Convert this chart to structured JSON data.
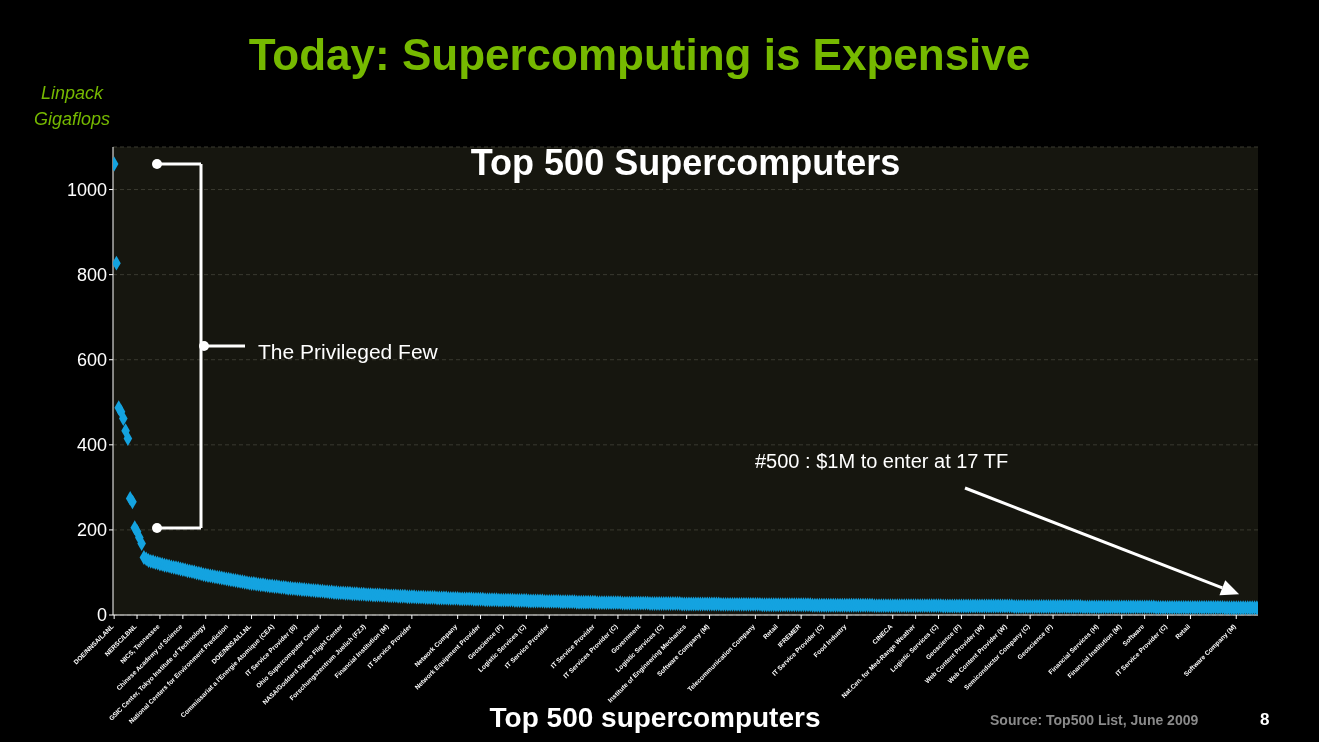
{
  "chart_data": {
    "type": "scatter",
    "title": "Today: Supercomputing is Expensive",
    "subtitle": "Top 500 Supercomputers",
    "xlabel": "Top 500 supercomputers",
    "ylabel": "Linpack Gigaflops",
    "annotations": [
      "The Privileged Few",
      "#500 : $1M to enter at 17 TF",
      "Source: Top500 List, June 2009",
      "8"
    ],
    "categories": [
      "DOE/NNSA/LANL",
      null,
      null,
      null,
      null,
      null,
      null,
      null,
      null,
      null,
      "NERSC/LBNL",
      null,
      null,
      null,
      null,
      null,
      null,
      null,
      null,
      null,
      "NICS, Tennessee",
      null,
      null,
      null,
      null,
      null,
      null,
      null,
      null,
      null,
      "Chinese Academy of Science",
      null,
      null,
      null,
      null,
      null,
      null,
      null,
      null,
      null,
      "GSIC Center, Tokyo Institute of Technology",
      null,
      null,
      null,
      null,
      null,
      null,
      null,
      null,
      null,
      "National Centers for Environment Prediction",
      null,
      null,
      null,
      null,
      null,
      null,
      null,
      null,
      null,
      "DOE/NNSA/LLNL",
      null,
      null,
      null,
      null,
      null,
      null,
      null,
      null,
      null,
      "Commissariat a l'Energie Atomique (CEA)",
      null,
      null,
      null,
      null,
      null,
      null,
      null,
      null,
      null,
      "IT Service Provider (B)",
      null,
      null,
      null,
      null,
      null,
      null,
      null,
      null,
      null,
      "Ohio Supercomputer Center",
      null,
      null,
      null,
      null,
      null,
      null,
      null,
      null,
      null,
      "NASA/Goddard Space Flight Center",
      null,
      null,
      null,
      null,
      null,
      null,
      null,
      null,
      null,
      "Forschungszentrum Juelich (FZJ)",
      null,
      null,
      null,
      null,
      null,
      null,
      null,
      null,
      null,
      "Financial Institution (M)",
      null,
      null,
      null,
      null,
      null,
      null,
      null,
      null,
      null,
      "IT Service Provider",
      null,
      null,
      null,
      null,
      null,
      null,
      null,
      null,
      null,
      null,
      null,
      null,
      null,
      null,
      null,
      null,
      null,
      null,
      null,
      "Network Company",
      null,
      null,
      null,
      null,
      null,
      null,
      null,
      null,
      null,
      "Network Equipment Provider",
      null,
      null,
      null,
      null,
      null,
      null,
      null,
      null,
      null,
      "Geoscience (F)",
      null,
      null,
      null,
      null,
      null,
      null,
      null,
      null,
      null,
      "Logistic Services (C)",
      null,
      null,
      null,
      null,
      null,
      null,
      null,
      null,
      null,
      "IT Service Provider",
      null,
      null,
      null,
      null,
      null,
      null,
      null,
      null,
      null,
      null,
      null,
      null,
      null,
      null,
      null,
      null,
      null,
      null,
      null,
      "IT Service Provider",
      null,
      null,
      null,
      null,
      null,
      null,
      null,
      null,
      null,
      "IT Services Provider (C)",
      null,
      null,
      null,
      null,
      null,
      null,
      null,
      null,
      null,
      "Government",
      null,
      null,
      null,
      null,
      null,
      null,
      null,
      null,
      null,
      "Logistic Services (C)",
      null,
      null,
      null,
      null,
      null,
      null,
      null,
      null,
      null,
      "Institute of Engineering Mechanics",
      null,
      null,
      null,
      null,
      null,
      null,
      null,
      null,
      null,
      "Software Company (M)",
      null,
      null,
      null,
      null,
      null,
      null,
      null,
      null,
      null,
      null,
      null,
      null,
      null,
      null,
      null,
      null,
      null,
      null,
      null,
      "Telecommunication Company",
      null,
      null,
      null,
      null,
      null,
      null,
      null,
      null,
      null,
      "Retail",
      null,
      null,
      null,
      null,
      null,
      null,
      null,
      null,
      null,
      "IFREMER",
      null,
      null,
      null,
      null,
      null,
      null,
      null,
      null,
      null,
      "IT Service Provider (C)",
      null,
      null,
      null,
      null,
      null,
      null,
      null,
      null,
      null,
      "Food Industry",
      null,
      null,
      null,
      null,
      null,
      null,
      null,
      null,
      null,
      null,
      null,
      null,
      null,
      null,
      null,
      null,
      null,
      null,
      null,
      "CINECA",
      null,
      null,
      null,
      null,
      null,
      null,
      null,
      null,
      null,
      "Nat.Cen. for Med-Range Weather",
      null,
      null,
      null,
      null,
      null,
      null,
      null,
      null,
      null,
      "Logistic Services (C)",
      null,
      null,
      null,
      null,
      null,
      null,
      null,
      null,
      null,
      "Geoscience (F)",
      null,
      null,
      null,
      null,
      null,
      null,
      null,
      null,
      null,
      "Web Content Provider (W)",
      null,
      null,
      null,
      null,
      null,
      null,
      null,
      null,
      null,
      "Web Content Provider (W)",
      null,
      null,
      null,
      null,
      null,
      null,
      null,
      null,
      null,
      "Semiconductor Company (C)",
      null,
      null,
      null,
      null,
      null,
      null,
      null,
      null,
      null,
      "Geoscience (F)",
      null,
      null,
      null,
      null,
      null,
      null,
      null,
      null,
      null,
      null,
      null,
      null,
      null,
      null,
      null,
      null,
      null,
      null,
      null,
      "Financial Services (H)",
      null,
      null,
      null,
      null,
      null,
      null,
      null,
      null,
      null,
      "Financial Institution (M)",
      null,
      null,
      null,
      null,
      null,
      null,
      null,
      null,
      null,
      "Software",
      null,
      null,
      null,
      null,
      null,
      null,
      null,
      null,
      null,
      "IT Service Provider (C)",
      null,
      null,
      null,
      null,
      null,
      null,
      null,
      null,
      null,
      "Retail",
      null,
      null,
      null,
      null,
      null,
      null,
      null,
      null,
      null,
      null,
      null,
      null,
      null,
      null,
      null,
      null,
      null,
      null,
      null,
      "Software Company (M)",
      null,
      null,
      null,
      null,
      null,
      null,
      null,
      null,
      null
    ],
    "values": [
      1060,
      827,
      487,
      478,
      462,
      433,
      415,
      274,
      266,
      205,
      196,
      182,
      168,
      135,
      132,
      128,
      126,
      125,
      123,
      122,
      120,
      119,
      117,
      116,
      115,
      113,
      112,
      111,
      110,
      108,
      107,
      106,
      104,
      103,
      102,
      101,
      99,
      98,
      97,
      95,
      94,
      93,
      92,
      91,
      90,
      89,
      88,
      87,
      86,
      85,
      84,
      83,
      82,
      81,
      80,
      79,
      78,
      77,
      76,
      75,
      74,
      74,
      73,
      72,
      71,
      71,
      70,
      69,
      68,
      68,
      67,
      67,
      66,
      65,
      65,
      64,
      63,
      63,
      62,
      62,
      61,
      61,
      60,
      60,
      59,
      59,
      58,
      58,
      57,
      57,
      56,
      56,
      55,
      55,
      54,
      54,
      53,
      53,
      52,
      52,
      52,
      51,
      51,
      51,
      50,
      50,
      50,
      49,
      49,
      49,
      48,
      48,
      48,
      47,
      47,
      47,
      47,
      46,
      46,
      46,
      45,
      45,
      45,
      45,
      44,
      44,
      44,
      44,
      43,
      43,
      43,
      43,
      42,
      42,
      42,
      42,
      41,
      41,
      41,
      41,
      41,
      40,
      40,
      40,
      40,
      40,
      39,
      39,
      39,
      39,
      39,
      38,
      38,
      38,
      38,
      38,
      38,
      37,
      37,
      37,
      37,
      37,
      36,
      36,
      36,
      36,
      36,
      36,
      35,
      35,
      35,
      35,
      35,
      35,
      35,
      34,
      34,
      34,
      34,
      34,
      34,
      33,
      33,
      33,
      33,
      33,
      33,
      33,
      32,
      32,
      32,
      32,
      32,
      32,
      32,
      31,
      31,
      31,
      31,
      31,
      31,
      31,
      30,
      30,
      30,
      30,
      30,
      30,
      30,
      30,
      30,
      29,
      29,
      29,
      29,
      29,
      29,
      29,
      29,
      29,
      29,
      29,
      28,
      28,
      28,
      28,
      28,
      28,
      28,
      28,
      28,
      28,
      28,
      28,
      27,
      27,
      27,
      27,
      27,
      27,
      27,
      27,
      27,
      27,
      27,
      27,
      27,
      27,
      26,
      26,
      26,
      26,
      26,
      26,
      26,
      26,
      26,
      26,
      26,
      26,
      26,
      26,
      26,
      26,
      26,
      25,
      25,
      25,
      25,
      25,
      25,
      25,
      25,
      25,
      25,
      25,
      25,
      25,
      25,
      25,
      25,
      25,
      25,
      24,
      24,
      24,
      24,
      24,
      24,
      24,
      24,
      24,
      24,
      24,
      24,
      24,
      24,
      24,
      24,
      24,
      24,
      24,
      24,
      24,
      24,
      23,
      23,
      23,
      23,
      23,
      23,
      23,
      23,
      23,
      23,
      23,
      23,
      23,
      23,
      23,
      23,
      23,
      23,
      23,
      23,
      23,
      23,
      23,
      23,
      23,
      23,
      23,
      22,
      22,
      22,
      22,
      22,
      22,
      22,
      22,
      22,
      22,
      22,
      22,
      22,
      22,
      22,
      22,
      22,
      22,
      22,
      22,
      22,
      22,
      22,
      22,
      22,
      22,
      22,
      22,
      22,
      22,
      21,
      21,
      21,
      21,
      21,
      21,
      21,
      21,
      21,
      21,
      21,
      21,
      21,
      21,
      21,
      21,
      21,
      21,
      21,
      21,
      21,
      21,
      21,
      21,
      21,
      21,
      21,
      21,
      21,
      21,
      21,
      20,
      20,
      20,
      20,
      20,
      20,
      20,
      20,
      20,
      20,
      20,
      20,
      20,
      20,
      20,
      20,
      20,
      20,
      20,
      20,
      20,
      20,
      20,
      20,
      20,
      20,
      20,
      20,
      20,
      20,
      19,
      19,
      19,
      19,
      19,
      19,
      19,
      19,
      19,
      19,
      19,
      19,
      19,
      19,
      19,
      19,
      19,
      19,
      19,
      19,
      19,
      19,
      19,
      19,
      19,
      19,
      19,
      19,
      19,
      19,
      19,
      19,
      18,
      18,
      18,
      18,
      18,
      18,
      18,
      18,
      18,
      18,
      18,
      18,
      18,
      18,
      18,
      18,
      18,
      18,
      18,
      18,
      18,
      18,
      18,
      18,
      18,
      18,
      18,
      18,
      18,
      18,
      17,
      17,
      17,
      17,
      17,
      17,
      17,
      17,
      17,
      17,
      17,
      17,
      17,
      17,
      17
    ],
    "color": "#14a3e0",
    "marker": "diamond",
    "grid": "y",
    "ylim": [
      0,
      1100
    ],
    "yticks": [
      0,
      200,
      400,
      600,
      800,
      1000
    ]
  }
}
